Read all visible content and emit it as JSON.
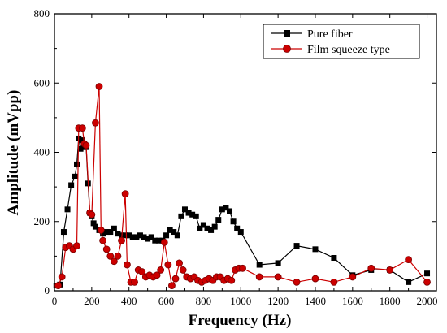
{
  "chart_data": {
    "type": "line",
    "xlabel": "Frequency (Hz)",
    "ylabel": "Amplitude (mVpp)",
    "xlim": [
      0,
      2050
    ],
    "ylim": [
      0,
      800
    ],
    "x_ticks": [
      0,
      200,
      400,
      600,
      800,
      1000,
      1200,
      1400,
      1600,
      1800,
      2000
    ],
    "y_ticks": [
      0,
      200,
      400,
      600,
      800
    ],
    "legend_position": "top-right",
    "grid": false,
    "series": [
      {
        "name": "Pure fiber",
        "color": "#000000",
        "marker": "square",
        "points": [
          [
            10,
            15
          ],
          [
            30,
            18
          ],
          [
            50,
            170
          ],
          [
            70,
            235
          ],
          [
            90,
            305
          ],
          [
            110,
            330
          ],
          [
            120,
            365
          ],
          [
            130,
            440
          ],
          [
            140,
            410
          ],
          [
            150,
            435
          ],
          [
            160,
            415
          ],
          [
            170,
            415
          ],
          [
            180,
            310
          ],
          [
            190,
            225
          ],
          [
            200,
            215
          ],
          [
            210,
            195
          ],
          [
            220,
            185
          ],
          [
            240,
            175
          ],
          [
            260,
            165
          ],
          [
            280,
            170
          ],
          [
            300,
            170
          ],
          [
            320,
            180
          ],
          [
            340,
            165
          ],
          [
            360,
            160
          ],
          [
            380,
            160
          ],
          [
            400,
            160
          ],
          [
            420,
            155
          ],
          [
            440,
            155
          ],
          [
            460,
            160
          ],
          [
            480,
            155
          ],
          [
            500,
            150
          ],
          [
            520,
            155
          ],
          [
            540,
            145
          ],
          [
            560,
            145
          ],
          [
            580,
            145
          ],
          [
            600,
            160
          ],
          [
            620,
            175
          ],
          [
            640,
            170
          ],
          [
            660,
            160
          ],
          [
            680,
            215
          ],
          [
            700,
            235
          ],
          [
            720,
            225
          ],
          [
            740,
            220
          ],
          [
            760,
            215
          ],
          [
            780,
            180
          ],
          [
            800,
            190
          ],
          [
            820,
            180
          ],
          [
            840,
            175
          ],
          [
            860,
            185
          ],
          [
            880,
            205
          ],
          [
            900,
            235
          ],
          [
            920,
            240
          ],
          [
            940,
            230
          ],
          [
            960,
            200
          ],
          [
            980,
            180
          ],
          [
            1000,
            170
          ],
          [
            1100,
            75
          ],
          [
            1200,
            80
          ],
          [
            1300,
            130
          ],
          [
            1400,
            120
          ],
          [
            1500,
            95
          ],
          [
            1600,
            45
          ],
          [
            1700,
            60
          ],
          [
            1800,
            60
          ],
          [
            1900,
            25
          ],
          [
            2000,
            50
          ]
        ]
      },
      {
        "name": "Film squeeze type",
        "color": "#cc0000",
        "marker": "circle",
        "points": [
          [
            20,
            15
          ],
          [
            40,
            40
          ],
          [
            60,
            125
          ],
          [
            80,
            130
          ],
          [
            100,
            120
          ],
          [
            120,
            130
          ],
          [
            130,
            470
          ],
          [
            150,
            470
          ],
          [
            160,
            425
          ],
          [
            170,
            420
          ],
          [
            190,
            225
          ],
          [
            200,
            220
          ],
          [
            220,
            485
          ],
          [
            240,
            590
          ],
          [
            250,
            175
          ],
          [
            260,
            145
          ],
          [
            280,
            120
          ],
          [
            300,
            100
          ],
          [
            320,
            85
          ],
          [
            340,
            100
          ],
          [
            360,
            145
          ],
          [
            380,
            280
          ],
          [
            390,
            75
          ],
          [
            410,
            25
          ],
          [
            430,
            25
          ],
          [
            450,
            60
          ],
          [
            470,
            55
          ],
          [
            490,
            40
          ],
          [
            510,
            45
          ],
          [
            530,
            40
          ],
          [
            550,
            45
          ],
          [
            570,
            60
          ],
          [
            590,
            140
          ],
          [
            610,
            75
          ],
          [
            630,
            15
          ],
          [
            650,
            35
          ],
          [
            670,
            80
          ],
          [
            690,
            60
          ],
          [
            710,
            40
          ],
          [
            730,
            35
          ],
          [
            750,
            40
          ],
          [
            770,
            30
          ],
          [
            790,
            25
          ],
          [
            810,
            30
          ],
          [
            830,
            35
          ],
          [
            850,
            30
          ],
          [
            870,
            40
          ],
          [
            890,
            40
          ],
          [
            910,
            30
          ],
          [
            930,
            35
          ],
          [
            950,
            30
          ],
          [
            970,
            60
          ],
          [
            990,
            65
          ],
          [
            1010,
            65
          ],
          [
            1100,
            40
          ],
          [
            1200,
            40
          ],
          [
            1300,
            25
          ],
          [
            1400,
            35
          ],
          [
            1500,
            25
          ],
          [
            1600,
            40
          ],
          [
            1700,
            65
          ],
          [
            1800,
            60
          ],
          [
            1900,
            90
          ],
          [
            2000,
            25
          ]
        ]
      }
    ]
  }
}
